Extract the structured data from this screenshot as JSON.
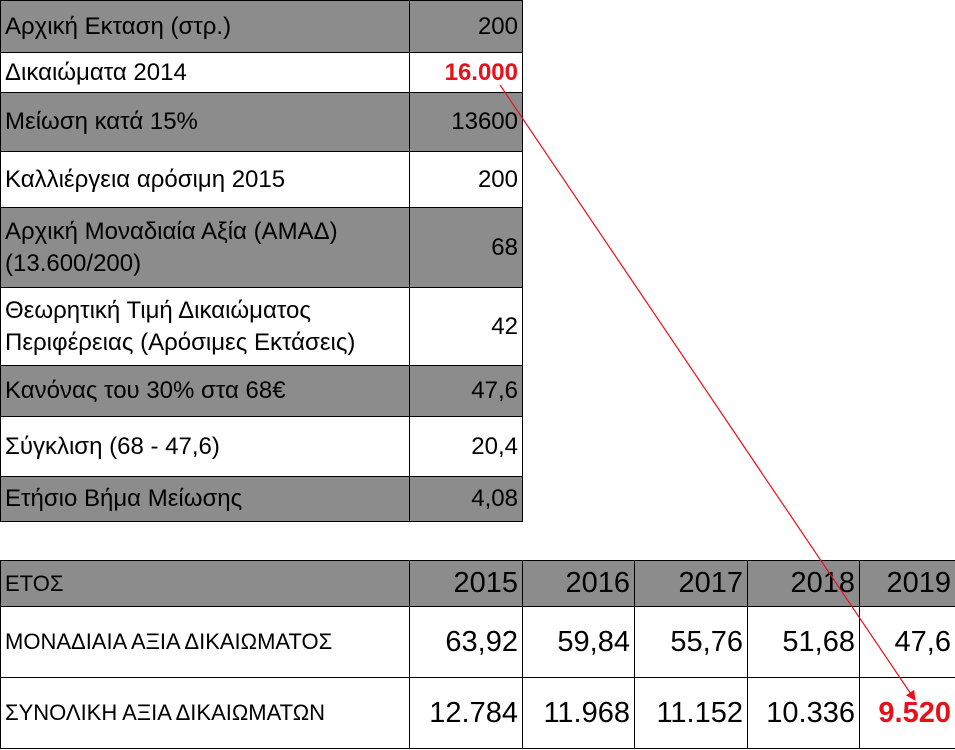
{
  "top_table": {
    "rows": [
      {
        "label": "Αρχική Εκταση (στρ.)",
        "value": "200"
      },
      {
        "label": "Δικαιώματα 2014",
        "value": "16.000"
      },
      {
        "label": "Μείωση κατά 15%",
        "value": "13600"
      },
      {
        "label": "Καλλιέργεια αρόσιμη 2015",
        "value": "200"
      },
      {
        "label": "Αρχική Μοναδιαία Αξία (ΑΜΑΔ) (13.600/200)",
        "value": "68"
      },
      {
        "label": "Θεωρητική Τιμή Δικαιώματος Περιφέρειας (Αρόσιμες Εκτάσεις)",
        "value": "42"
      },
      {
        "label": "Κανόνας του 30% στα 68€",
        "value": "47,6"
      },
      {
        "label": "Σύγκλιση (68 - 47,6)",
        "value": "20,4"
      },
      {
        "label": "Ετήσιο Βήμα Μείωσης",
        "value": "4,08"
      }
    ]
  },
  "bottom_table": {
    "header": {
      "label": "ΕΤΟΣ",
      "years": [
        "2015",
        "2016",
        "2017",
        "2018",
        "2019"
      ]
    },
    "unit_value": {
      "label": "ΜΟΝΑΔΙΑΙΑ ΑΞΙΑ ΔΙΚΑΙΩΜΑΤΟΣ",
      "values": [
        "63,92",
        "59,84",
        "55,76",
        "51,68",
        "47,6"
      ]
    },
    "total_value": {
      "label": "ΣΥΝΟΛΙΚΗ ΑΞΙΑ ΔΙΚΑΙΩΜΑΤΩΝ",
      "values": [
        "12.784",
        "11.968",
        "11.152",
        "10.336",
        "9.520"
      ]
    }
  },
  "colors": {
    "highlight": "#e8101a",
    "shade": "#8c8c8c",
    "arrow": "#e8101a"
  }
}
